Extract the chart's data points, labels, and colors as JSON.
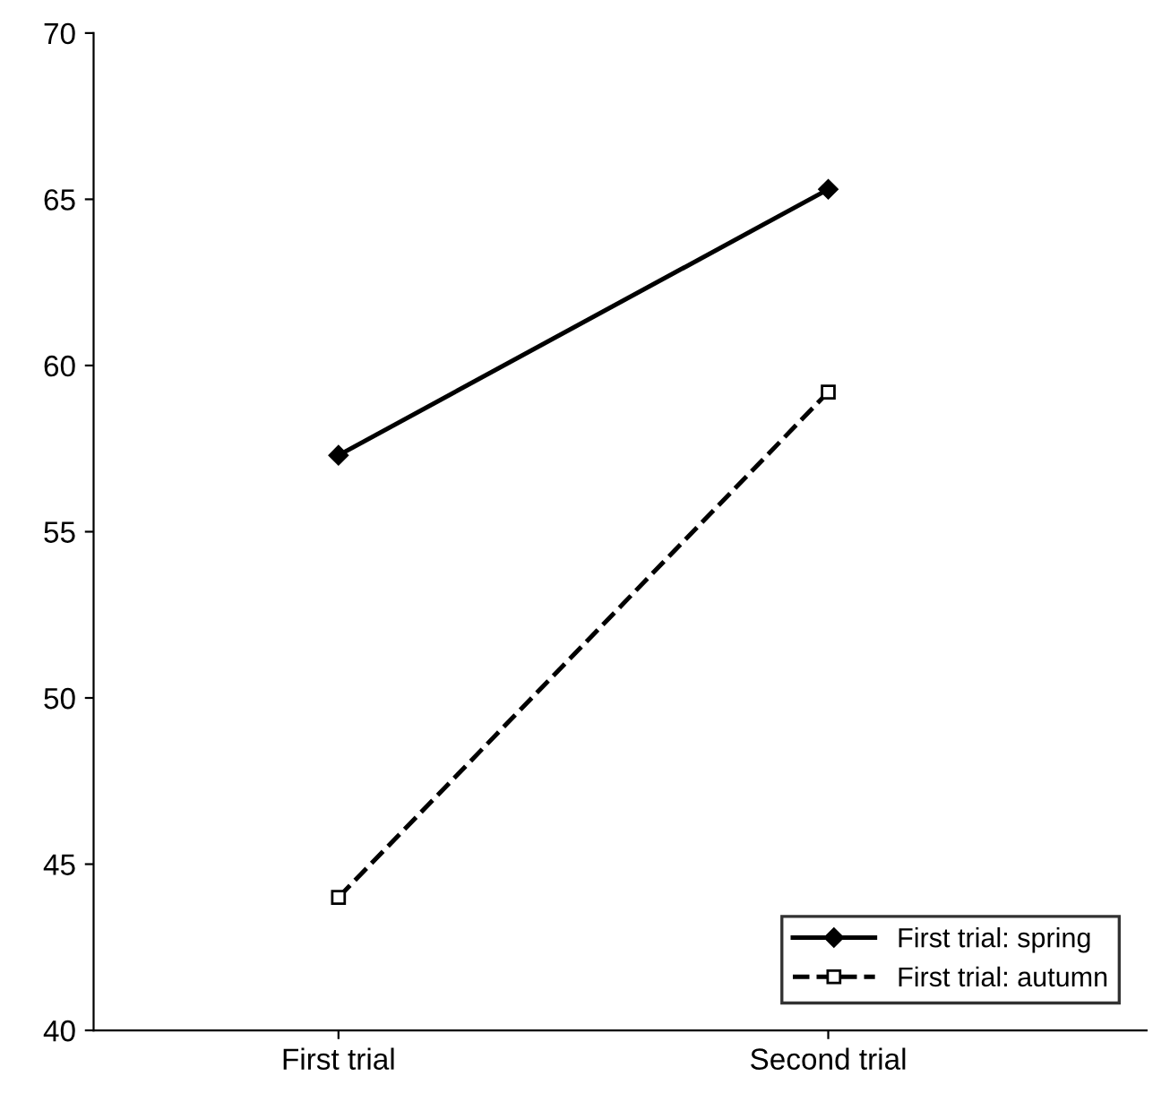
{
  "chart_data": {
    "type": "line",
    "categories": [
      "First trial",
      "Second trial"
    ],
    "series": [
      {
        "name": "First trial: spring",
        "color": "#000000",
        "values": [
          57.3,
          65.3
        ],
        "marker": "diamond",
        "line_style": "solid"
      },
      {
        "name": "First trial: autumn",
        "color": "#000000",
        "values": [
          44.0,
          59.2
        ],
        "marker": "square",
        "line_style": "dashed"
      }
    ],
    "ylim": [
      40,
      70
    ],
    "yticks": [
      40,
      45,
      50,
      55,
      60,
      65,
      70
    ],
    "grid": false,
    "legend": "bottom right"
  }
}
